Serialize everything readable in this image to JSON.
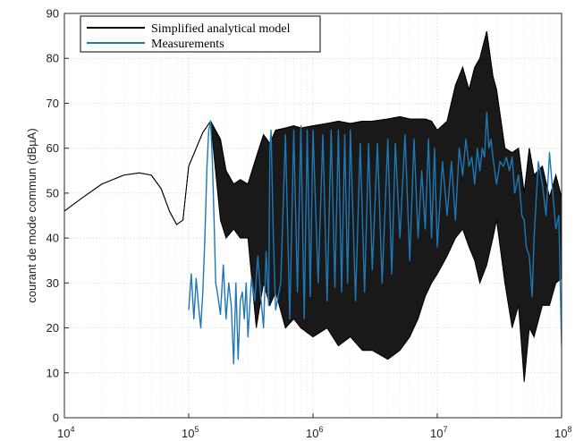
{
  "chart_data": {
    "type": "line",
    "title": "",
    "xlabel": "",
    "ylabel": "courant de mode commun (dBµA)",
    "xscale": "log",
    "xlim": [
      10000,
      100000000
    ],
    "ylim": [
      0,
      90
    ],
    "x_ticks": [
      {
        "base": "10",
        "exp": "4"
      },
      {
        "base": "10",
        "exp": "5"
      },
      {
        "base": "10",
        "exp": "6"
      },
      {
        "base": "10",
        "exp": "7"
      },
      {
        "base": "10",
        "exp": "8"
      }
    ],
    "y_ticks": [
      "0",
      "10",
      "20",
      "30",
      "40",
      "50",
      "60",
      "70",
      "80",
      "90"
    ],
    "grid": true,
    "legend": {
      "position": "top-left"
    },
    "series": [
      {
        "name": "Simplified analytical model",
        "color": "#000000",
        "x": [
          10000,
          14000,
          20000,
          30000,
          40000,
          50000,
          60000,
          70000,
          80000,
          90000,
          100000,
          130000,
          150000,
          180000,
          200000,
          230000,
          260000,
          300000,
          350000,
          400000,
          450000,
          500000,
          600000,
          700000,
          800000,
          1000000,
          1300000,
          1600000,
          2000000,
          2500000,
          3000000,
          4000000,
          5000000,
          6000000,
          7000000,
          8000000,
          9000000,
          10000000,
          12000000,
          14000000,
          16000000,
          18000000,
          20000000,
          22000000,
          25000000,
          28000000,
          30000000,
          35000000,
          40000000,
          45000000,
          50000000,
          55000000,
          60000000,
          70000000,
          80000000,
          90000000,
          100000000
        ],
        "upper": [
          46,
          49,
          52,
          54,
          54.5,
          54,
          51,
          46,
          43,
          44,
          56,
          63.5,
          66,
          62,
          55,
          52,
          53,
          52,
          58,
          63,
          61,
          64,
          64.5,
          65,
          64.5,
          65,
          65.5,
          66,
          65.5,
          66,
          66,
          66.5,
          67,
          66.5,
          66.5,
          66.5,
          66,
          64,
          66,
          74,
          78,
          73,
          78,
          80,
          86,
          76,
          73,
          60,
          59,
          60,
          50,
          60,
          54,
          56,
          49,
          54,
          49
        ],
        "lower": [
          46,
          49,
          52,
          54,
          54.5,
          54,
          51,
          46,
          43,
          44,
          56,
          63.5,
          66,
          44,
          40,
          42,
          40,
          40,
          20,
          30,
          25,
          28,
          20,
          22,
          20,
          18,
          20,
          16,
          18,
          15,
          15,
          13,
          15,
          18,
          22,
          27,
          30,
          32,
          36,
          40,
          42,
          38,
          35,
          30,
          34,
          40,
          44,
          30,
          20,
          25,
          8,
          20,
          18,
          25,
          25,
          30,
          31
        ]
      },
      {
        "name": "Measurements",
        "color": "#1f77b4",
        "x": [
          100000,
          105000,
          110000,
          115000,
          120000,
          125000,
          130000,
          135000,
          140000,
          145000,
          150000,
          155000,
          160000,
          165000,
          170000,
          180000,
          190000,
          200000,
          210000,
          220000,
          230000,
          240000,
          250000,
          260000,
          270000,
          280000,
          290000,
          300000,
          320000,
          340000,
          360000,
          380000,
          400000,
          420000,
          440000,
          450000,
          460000,
          480000,
          500000,
          550000,
          600000,
          650000,
          700000,
          750000,
          800000,
          850000,
          900000,
          950000,
          1000000,
          1100000,
          1200000,
          1300000,
          1400000,
          1500000,
          1600000,
          1700000,
          1800000,
          1900000,
          2000000,
          2200000,
          2400000,
          2600000,
          2800000,
          3000000,
          3300000,
          3600000,
          4000000,
          4300000,
          4600000,
          5000000,
          5500000,
          6000000,
          6500000,
          7000000,
          7500000,
          8000000,
          8500000,
          9000000,
          9500000,
          10000000,
          11000000,
          12000000,
          13000000,
          14000000,
          15000000,
          16000000,
          17000000,
          18000000,
          19000000,
          20000000,
          21000000,
          22000000,
          23000000,
          24000000,
          25000000,
          26000000,
          27000000,
          28000000,
          30000000,
          32000000,
          34000000,
          36000000,
          38000000,
          40000000,
          42000000,
          45000000,
          48000000,
          50000000,
          52000000,
          55000000,
          58000000,
          60000000,
          65000000,
          70000000,
          75000000,
          80000000,
          85000000,
          90000000,
          95000000,
          100000000
        ],
        "y": [
          24,
          32,
          22,
          31,
          25,
          20,
          28,
          40,
          55,
          64,
          66,
          57,
          44,
          30,
          28,
          23,
          34,
          22,
          30,
          25,
          12,
          30,
          13,
          26,
          28,
          22,
          30,
          18,
          31,
          26,
          36,
          27,
          20,
          37,
          25,
          60,
          64,
          40,
          24,
          30,
          63,
          22,
          64,
          28,
          65,
          22,
          64,
          27,
          64,
          30,
          63,
          26,
          64,
          29,
          64,
          28,
          63,
          30,
          64,
          26,
          61,
          28,
          61,
          33,
          61,
          30,
          62,
          32,
          61,
          40,
          63,
          35,
          62,
          40,
          55,
          42,
          62,
          40,
          60,
          38,
          57,
          45,
          57,
          44,
          60,
          54,
          62,
          56,
          58,
          52,
          60,
          55,
          60,
          58,
          68,
          60,
          62,
          58,
          52,
          57,
          56,
          58,
          55,
          58,
          50,
          54,
          45,
          44,
          38,
          36,
          27,
          40,
          57,
          52,
          45,
          59,
          50,
          42,
          45,
          16
        ]
      }
    ]
  }
}
